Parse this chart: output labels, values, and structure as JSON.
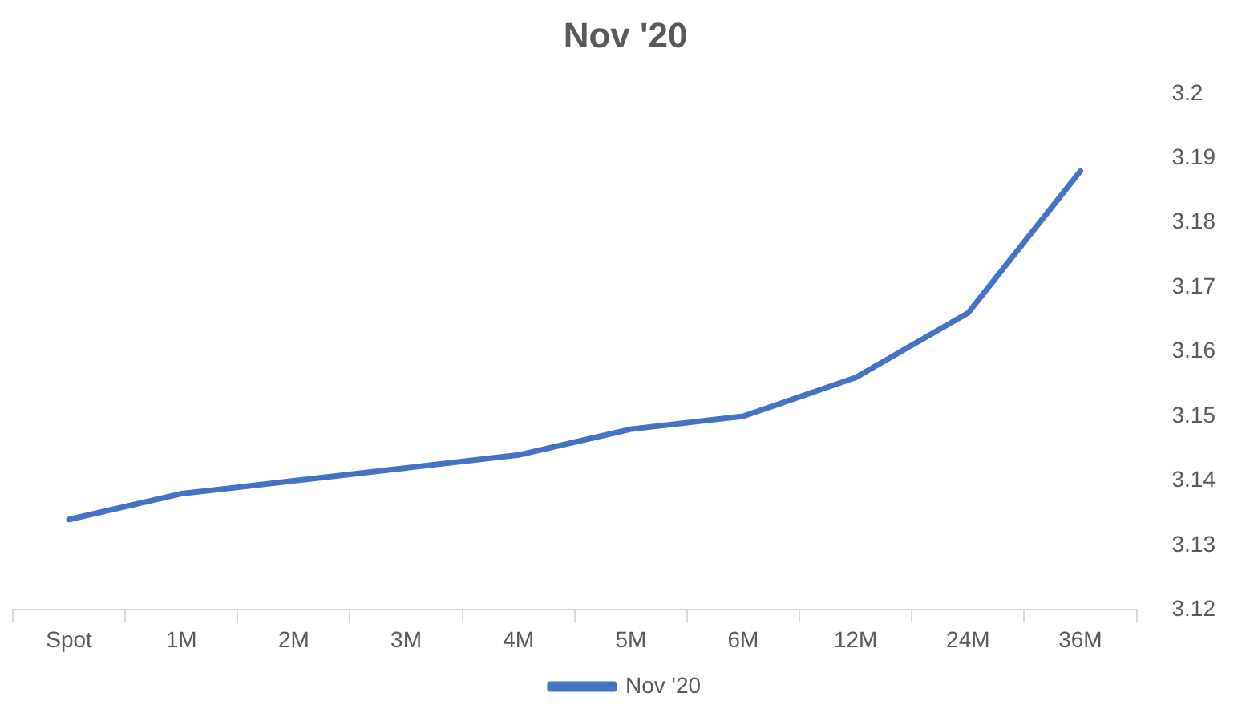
{
  "chart_data": {
    "type": "line",
    "title": "Nov '20",
    "categories": [
      "Spot",
      "1M",
      "2M",
      "3M",
      "4M",
      "5M",
      "6M",
      "12M",
      "24M",
      "36M"
    ],
    "series": [
      {
        "name": "Nov '20",
        "color": "#4472c4",
        "values": [
          3.134,
          3.138,
          3.14,
          3.142,
          3.144,
          3.148,
          3.15,
          3.156,
          3.166,
          3.188
        ]
      }
    ],
    "ylim": [
      3.12,
      3.2
    ],
    "yticks": [
      3.12,
      3.13,
      3.14,
      3.15,
      3.16,
      3.17,
      3.18,
      3.19,
      3.2
    ],
    "grid": false,
    "legend": "bottom",
    "marker": "none",
    "line_style": "solid"
  }
}
